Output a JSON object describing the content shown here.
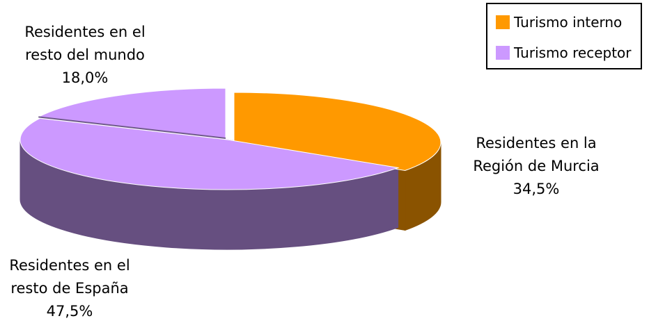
{
  "chart_data": {
    "type": "pie",
    "style": "3d-exploded",
    "legend_position": "top-right",
    "legend": [
      {
        "name": "Turismo interno",
        "color": "#ff9900"
      },
      {
        "name": "Turismo receptor",
        "color": "#cc99ff"
      }
    ],
    "slices": [
      {
        "label_lines": [
          "Residentes en la",
          "Región de Murcia"
        ],
        "value_text": "34,5%",
        "value": 34.5,
        "group": "Turismo interno",
        "color": "#ff9900",
        "side_color": "#8a5300"
      },
      {
        "label_lines": [
          "Residentes en el",
          "resto de España"
        ],
        "value_text": "47,5%",
        "value": 47.5,
        "group": "Turismo receptor",
        "color": "#cc99ff",
        "side_color": "#664f80"
      },
      {
        "label_lines": [
          "Residentes en el",
          "resto del mundo"
        ],
        "value_text": "18,0%",
        "value": 18.0,
        "group": "Turismo receptor",
        "color": "#cc99ff",
        "side_color": "#664f80"
      }
    ]
  }
}
